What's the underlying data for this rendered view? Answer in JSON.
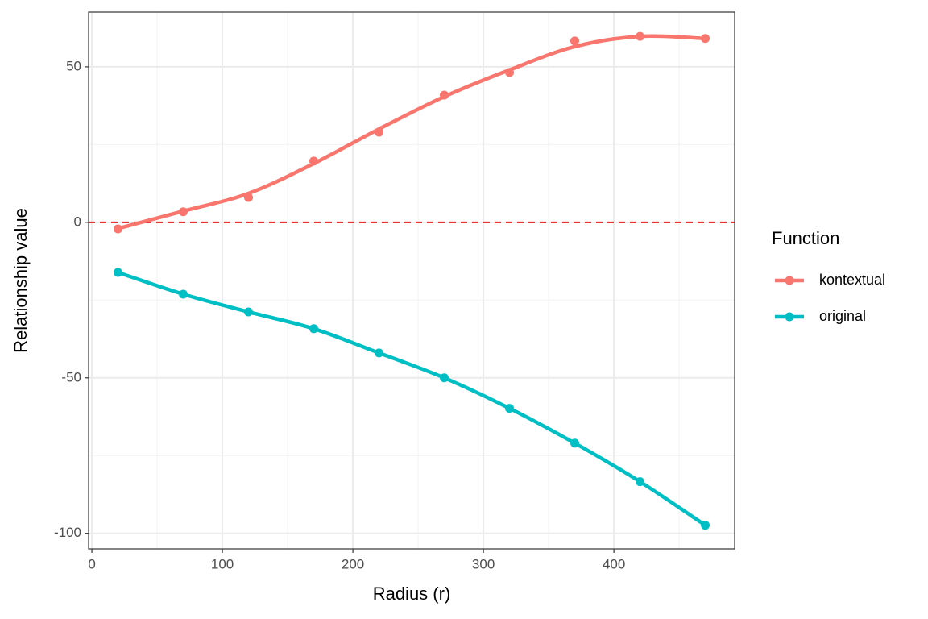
{
  "chart_data": {
    "type": "line",
    "x_label": "Radius (r)",
    "y_label": "Relationship value",
    "legend_title": "Function",
    "legend_position": "right",
    "x": [
      20,
      70,
      120,
      170,
      220,
      270,
      320,
      370,
      420,
      470
    ],
    "series": [
      {
        "name": "kontextual",
        "color": "#F8766D",
        "values": [
          -2.1,
          3.4,
          8,
          19.7,
          29,
          40.9,
          48.2,
          58.3,
          59.8,
          59.1
        ],
        "fit": [
          -2,
          3.6,
          9.3,
          18.9,
          30,
          40.4,
          49,
          56.5,
          59.8,
          59.1
        ]
      },
      {
        "name": "original",
        "color": "#00BFC4",
        "values": [
          -16.1,
          -23.1,
          -28.8,
          -34.2,
          -42,
          -50,
          -59.8,
          -71,
          -83.4,
          -97.4
        ],
        "fit": [
          -16.1,
          -23.1,
          -28.8,
          -34.2,
          -42,
          -50,
          -59.8,
          -71,
          -83.4,
          -97.4
        ]
      }
    ],
    "hline": 0,
    "hline_color": "#e31a1c",
    "xlim": [
      -2.5,
      492.5
    ],
    "xticks": [
      0,
      100,
      200,
      300,
      400
    ],
    "xminor": [
      50,
      150,
      250,
      350,
      450
    ],
    "ylim": [
      -105,
      67.6
    ],
    "yticks": [
      -100,
      -50,
      0,
      50
    ],
    "yminor": [
      -75,
      -25,
      25
    ],
    "grid": true
  }
}
